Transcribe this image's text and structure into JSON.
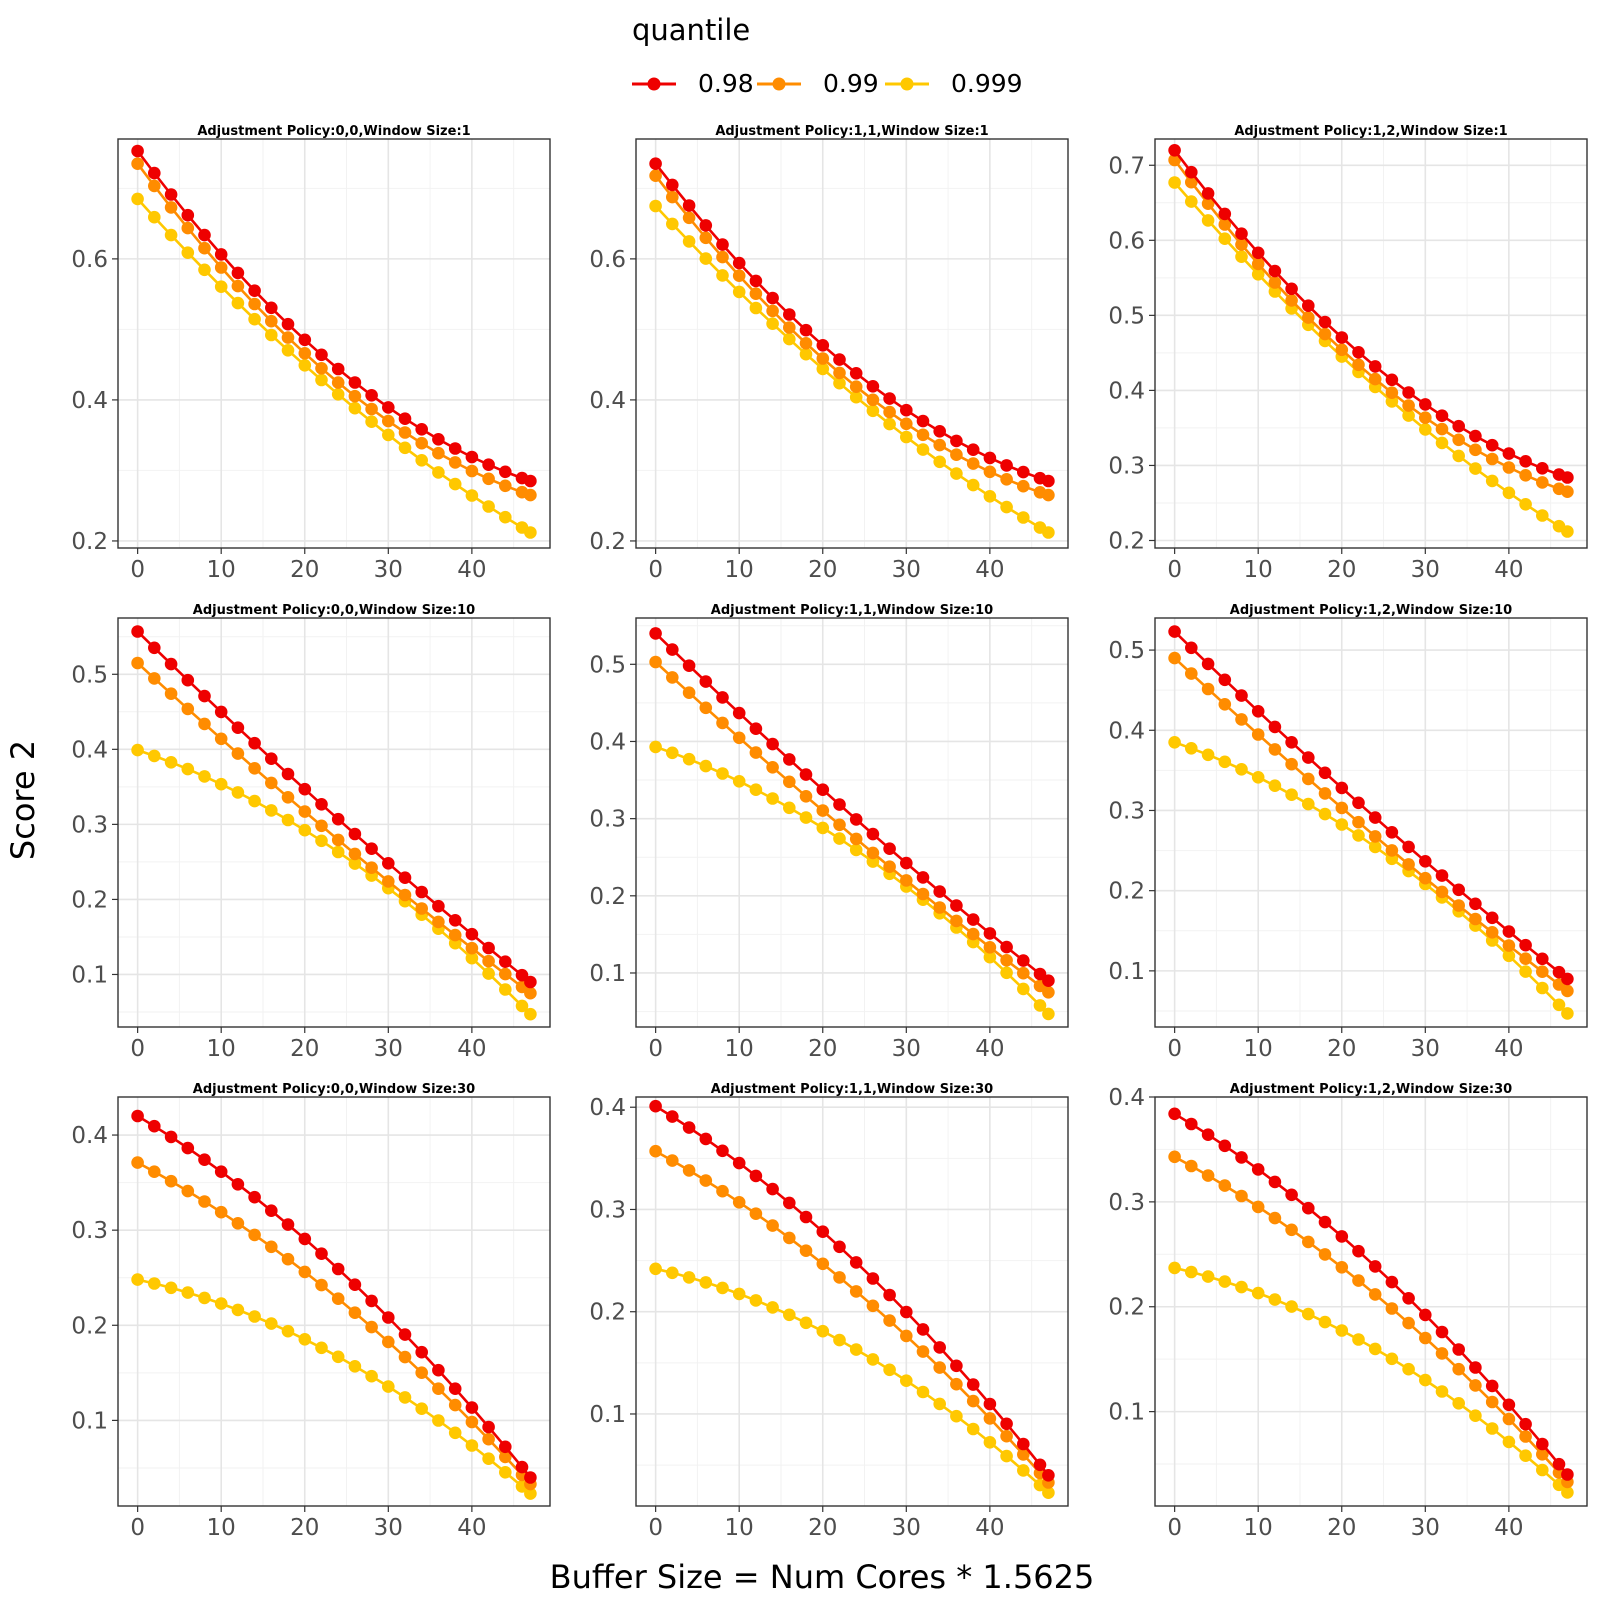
{
  "chart_data": {
    "type": "line",
    "xlabel": "Buffer Size = Num Cores * 1.5625",
    "ylabel": "Score 2",
    "grid": true,
    "legend": {
      "title": "quantile",
      "position": "top",
      "entries": [
        {
          "label": "0.98",
          "color": "#ee0000"
        },
        {
          "label": "0.99",
          "color": "#ff8c00"
        },
        {
          "label": "0.999",
          "color": "#ffc800"
        }
      ]
    },
    "x": [
      0,
      2,
      4,
      6,
      8,
      10,
      12,
      14,
      16,
      18,
      20,
      22,
      24,
      26,
      28,
      30,
      32,
      34,
      36,
      38,
      40,
      42,
      44,
      46,
      47
    ],
    "panels": [
      {
        "title": "Adjustment Policy:0,0,Window Size:1",
        "ylim": [
          0.19,
          0.77
        ],
        "yticks": [
          0.2,
          0.4,
          0.6
        ],
        "yticklabels": [
          "0.2",
          "0.4",
          "0.6"
        ],
        "xticks": [
          0,
          10,
          20,
          30,
          40
        ],
        "xticklabels": [
          "0",
          "10",
          "20",
          "30",
          "40"
        ],
        "series": [
          {
            "name": "0.98",
            "start": 0.753,
            "end": 0.285,
            "curve": 0.6
          },
          {
            "name": "0.99",
            "start": 0.735,
            "end": 0.265,
            "curve": 0.6
          },
          {
            "name": "0.999",
            "start": 0.685,
            "end": 0.212,
            "curve": 0.3
          }
        ]
      },
      {
        "title": "Adjustment Policy:1,1,Window Size:1",
        "ylim": [
          0.19,
          0.77
        ],
        "yticks": [
          0.2,
          0.4,
          0.6
        ],
        "yticklabels": [
          "0.2",
          "0.4",
          "0.6"
        ],
        "xticks": [
          0,
          10,
          20,
          30,
          40
        ],
        "xticklabels": [
          "0",
          "10",
          "20",
          "30",
          "40"
        ],
        "series": [
          {
            "name": "0.98",
            "start": 0.735,
            "end": 0.285,
            "curve": 0.6
          },
          {
            "name": "0.99",
            "start": 0.718,
            "end": 0.265,
            "curve": 0.6
          },
          {
            "name": "0.999",
            "start": 0.675,
            "end": 0.212,
            "curve": 0.3
          }
        ]
      },
      {
        "title": "Adjustment Policy:1,2,Window Size:1",
        "ylim": [
          0.19,
          0.735
        ],
        "yticks": [
          0.2,
          0.3,
          0.4,
          0.5,
          0.6,
          0.7
        ],
        "yticklabels": [
          "0.2",
          "0.3",
          "0.4",
          "0.5",
          "0.6",
          "0.7"
        ],
        "xticks": [
          0,
          10,
          20,
          30,
          40
        ],
        "xticklabels": [
          "0",
          "10",
          "20",
          "30",
          "40"
        ],
        "series": [
          {
            "name": "0.98",
            "start": 0.72,
            "end": 0.284,
            "curve": 0.6
          },
          {
            "name": "0.99",
            "start": 0.707,
            "end": 0.265,
            "curve": 0.6
          },
          {
            "name": "0.999",
            "start": 0.677,
            "end": 0.212,
            "curve": 0.3
          }
        ]
      },
      {
        "title": "Adjustment Policy:0,0,Window Size:10",
        "ylim": [
          0.03,
          0.575
        ],
        "yticks": [
          0.1,
          0.2,
          0.3,
          0.4,
          0.5
        ],
        "yticklabels": [
          "0.1",
          "0.2",
          "0.3",
          "0.4",
          "0.5"
        ],
        "xticks": [
          0,
          10,
          20,
          30,
          40
        ],
        "xticklabels": [
          "0",
          "10",
          "20",
          "30",
          "40"
        ],
        "series": [
          {
            "name": "0.98",
            "start": 0.557,
            "end": 0.09,
            "curve": 0.1
          },
          {
            "name": "0.99",
            "start": 0.515,
            "end": 0.075,
            "curve": 0.1
          },
          {
            "name": "0.999",
            "start": 0.399,
            "end": 0.047,
            "curve": -0.5
          }
        ]
      },
      {
        "title": "Adjustment Policy:1,1,Window Size:10",
        "ylim": [
          0.03,
          0.56
        ],
        "yticks": [
          0.1,
          0.2,
          0.3,
          0.4,
          0.5
        ],
        "yticklabels": [
          "0.1",
          "0.2",
          "0.3",
          "0.4",
          "0.5"
        ],
        "xticks": [
          0,
          10,
          20,
          30,
          40
        ],
        "xticklabels": [
          "0",
          "10",
          "20",
          "30",
          "40"
        ],
        "series": [
          {
            "name": "0.98",
            "start": 0.54,
            "end": 0.09,
            "curve": 0.1
          },
          {
            "name": "0.99",
            "start": 0.503,
            "end": 0.075,
            "curve": 0.1
          },
          {
            "name": "0.999",
            "start": 0.393,
            "end": 0.047,
            "curve": -0.5
          }
        ]
      },
      {
        "title": "Adjustment Policy:1,2,Window Size:10",
        "ylim": [
          0.03,
          0.54
        ],
        "yticks": [
          0.1,
          0.2,
          0.3,
          0.4,
          0.5
        ],
        "yticklabels": [
          "0.1",
          "0.2",
          "0.3",
          "0.4",
          "0.5"
        ],
        "xticks": [
          0,
          10,
          20,
          30,
          40
        ],
        "xticklabels": [
          "0",
          "10",
          "20",
          "30",
          "40"
        ],
        "series": [
          {
            "name": "0.98",
            "start": 0.523,
            "end": 0.09,
            "curve": 0.1
          },
          {
            "name": "0.99",
            "start": 0.49,
            "end": 0.075,
            "curve": 0.1
          },
          {
            "name": "0.999",
            "start": 0.385,
            "end": 0.047,
            "curve": -0.5
          }
        ]
      },
      {
        "title": "Adjustment Policy:0,0,Window Size:30",
        "ylim": [
          0.01,
          0.44
        ],
        "yticks": [
          0.1,
          0.2,
          0.3,
          0.4
        ],
        "yticklabels": [
          "0.1",
          "0.2",
          "0.3",
          "0.4"
        ],
        "xticks": [
          0,
          10,
          20,
          30,
          40
        ],
        "xticklabels": [
          "0",
          "10",
          "20",
          "30",
          "40"
        ],
        "series": [
          {
            "name": "0.98",
            "start": 0.42,
            "end": 0.04,
            "curve": -0.35
          },
          {
            "name": "0.99",
            "start": 0.371,
            "end": 0.033,
            "curve": -0.35
          },
          {
            "name": "0.999",
            "start": 0.248,
            "end": 0.023,
            "curve": -0.6
          }
        ]
      },
      {
        "title": "Adjustment Policy:1,1,Window Size:30",
        "ylim": [
          0.01,
          0.41
        ],
        "yticks": [
          0.1,
          0.2,
          0.3,
          0.4
        ],
        "yticklabels": [
          "0.1",
          "0.2",
          "0.3",
          "0.4"
        ],
        "xticks": [
          0,
          10,
          20,
          30,
          40
        ],
        "xticklabels": [
          "0",
          "10",
          "20",
          "30",
          "40"
        ],
        "series": [
          {
            "name": "0.98",
            "start": 0.401,
            "end": 0.04,
            "curve": -0.35
          },
          {
            "name": "0.99",
            "start": 0.357,
            "end": 0.033,
            "curve": -0.35
          },
          {
            "name": "0.999",
            "start": 0.242,
            "end": 0.023,
            "curve": -0.6
          }
        ]
      },
      {
        "title": "Adjustment Policy:1,2,Window Size:30",
        "ylim": [
          0.01,
          0.4
        ],
        "yticks": [
          0.1,
          0.2,
          0.3,
          0.4
        ],
        "yticklabels": [
          "0.1",
          "0.2",
          "0.3",
          "0.4"
        ],
        "xticks": [
          0,
          10,
          20,
          30,
          40
        ],
        "xticklabels": [
          "0",
          "10",
          "20",
          "30",
          "40"
        ],
        "series": [
          {
            "name": "0.98",
            "start": 0.384,
            "end": 0.04,
            "curve": -0.35
          },
          {
            "name": "0.99",
            "start": 0.343,
            "end": 0.033,
            "curve": -0.35
          },
          {
            "name": "0.999",
            "start": 0.237,
            "end": 0.023,
            "curve": -0.6
          }
        ]
      }
    ]
  }
}
